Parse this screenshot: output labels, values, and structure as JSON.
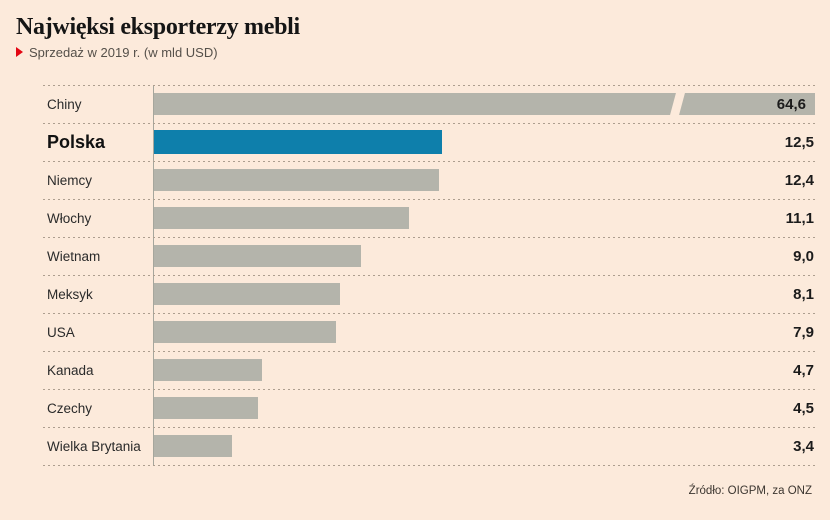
{
  "header": {
    "title": "Najwięksi eksporterzy mebli",
    "subtitle": "Sprzedaż w 2019 r. (w mld USD)",
    "bullet_icon": "red-triangle-right-icon",
    "bullet_color": "#e30613"
  },
  "chart_data": {
    "type": "bar",
    "orientation": "horizontal",
    "title": "Najwięksi eksporterzy mebli",
    "subtitle": "Sprzedaż w 2019 r. (w mld USD)",
    "unit": "mld USD",
    "categories": [
      "Chiny",
      "Polska",
      "Niemcy",
      "Włochy",
      "Wietnam",
      "Meksyk",
      "USA",
      "Kanada",
      "Czechy",
      "Wielka Brytania"
    ],
    "values": [
      64.6,
      12.5,
      12.4,
      11.1,
      9.0,
      8.1,
      7.9,
      4.7,
      4.5,
      3.4
    ],
    "value_labels": [
      "64,6",
      "12,5",
      "12,4",
      "11,1",
      "9,0",
      "8,1",
      "7,9",
      "4,7",
      "4,5",
      "3,4"
    ],
    "highlight_index": 1,
    "truncated_index": 0,
    "axis_break": true,
    "grid": "dashed-row-separators",
    "legend": false,
    "xlim_visible": [
      0,
      28.7
    ],
    "colors": {
      "bar": "#b4b4ab",
      "highlight": "#0e7fab",
      "background": "#fceadb"
    }
  },
  "footer": {
    "source": "Źródło: OIGPM, za ONZ"
  }
}
